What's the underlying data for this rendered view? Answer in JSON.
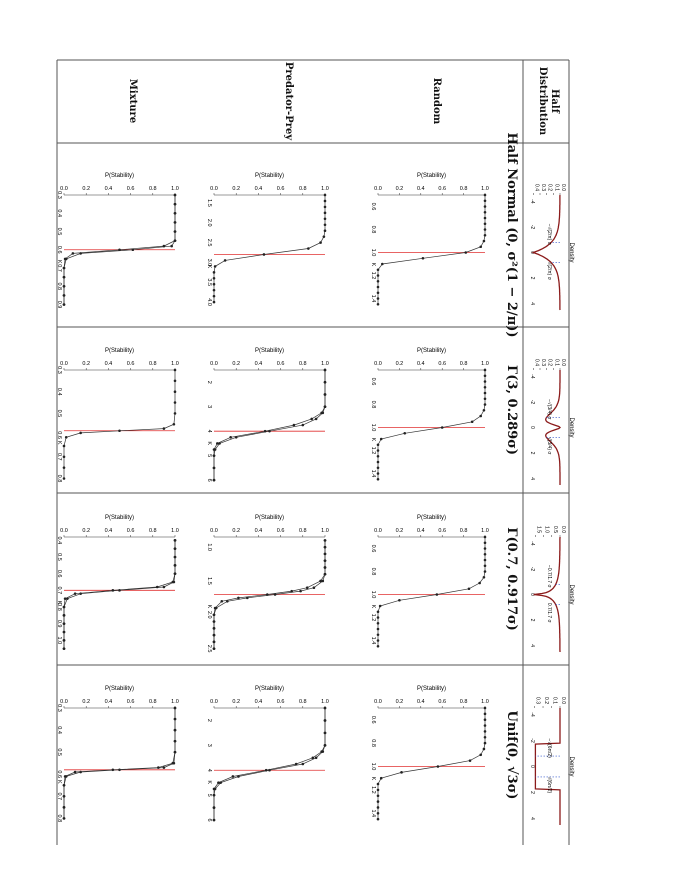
{
  "table": {
    "header_title": "Half\nDistribution",
    "rows": [
      "Random",
      "Predator-Prey",
      "Mixture"
    ],
    "columns": [
      {
        "label": "Half Normal (0, σ²(1 − 2/π))"
      },
      {
        "label": "Γ(3, 0.289σ)"
      },
      {
        "label": "Γ(0.7, 0.917σ)"
      },
      {
        "label": "Unif(0, √3σ)"
      }
    ]
  },
  "density_panels": [
    {
      "ylabel": "Density",
      "yticks": [
        "0.0",
        "0.1",
        "0.2",
        "0.3",
        "0.4"
      ],
      "xticks": [
        "-4",
        "-2",
        "0",
        "2",
        "4"
      ],
      "marker_labels": [
        "−√(2/π) σ",
        "√(2/π) σ"
      ]
    },
    {
      "ylabel": "Density",
      "yticks": [
        "0.0",
        "0.1",
        "0.2",
        "0.3",
        "0.4"
      ],
      "xticks": [
        "-4",
        "-2",
        "0",
        "2",
        "4"
      ],
      "marker_labels": [
        "−√(3/4) σ",
        "√(3/4) σ"
      ]
    },
    {
      "ylabel": "Density",
      "yticks": [
        "0.0",
        "0.5",
        "1.0",
        "1.5"
      ],
      "xticks": [
        "-4",
        "-2",
        "0",
        "2",
        "4"
      ],
      "marker_labels": [
        "−0.7/1.7 σ",
        "0.7/1.7 σ"
      ]
    },
    {
      "ylabel": "Density",
      "yticks": [
        "0.0",
        "0.1",
        "0.2",
        "0.3"
      ],
      "xticks": [
        "-4",
        "-2",
        "0",
        "2",
        "4"
      ],
      "marker_labels": [
        "−√(6π/2)",
        "√(6π/2)"
      ]
    }
  ],
  "stability_axis": {
    "ylabel": "P(Stability)",
    "yticks": [
      "0.0",
      "0.2",
      "0.4",
      "0.6",
      "0.8",
      "1.0"
    ],
    "xlabel": "K"
  },
  "chart_data": [
    {
      "type": "line",
      "row": "Random",
      "column": 1,
      "xlim": [
        0.5,
        1.5
      ],
      "xticks": [
        "0.6",
        "0.8",
        "1.0",
        "1.2",
        "1.4"
      ],
      "threshold": 1.0,
      "series": [
        {
          "x": [
            0.5,
            0.55,
            0.6,
            0.65,
            0.7,
            0.75,
            0.8,
            0.85,
            0.9,
            0.95,
            1.0,
            1.05,
            1.1,
            1.15,
            1.2,
            1.25,
            1.3,
            1.35,
            1.4,
            1.45
          ],
          "y": [
            1,
            1,
            1,
            1,
            1,
            1,
            1,
            1,
            0.99,
            0.96,
            0.82,
            0.42,
            0.04,
            0,
            0,
            0,
            0,
            0,
            0,
            0
          ]
        }
      ]
    },
    {
      "type": "line",
      "row": "Predator-Prey",
      "column": 1,
      "xlim": [
        1.3,
        4.2
      ],
      "xticks": [
        "1.5",
        "2.0",
        "2.5",
        "3.0",
        "3.5",
        "4.0"
      ],
      "threshold": 2.8,
      "series": [
        {
          "x": [
            1.3,
            1.45,
            1.6,
            1.75,
            1.9,
            2.05,
            2.2,
            2.35,
            2.5,
            2.65,
            2.8,
            2.95,
            3.1,
            3.25,
            3.4,
            3.55,
            3.7,
            3.85,
            4.0
          ],
          "y": [
            1,
            1,
            1,
            1,
            1,
            1,
            1,
            0.99,
            0.96,
            0.85,
            0.45,
            0.1,
            0.01,
            0,
            0,
            0,
            0,
            0,
            0
          ]
        }
      ]
    },
    {
      "type": "line",
      "row": "Mixture",
      "column": 1,
      "xlim": [
        0.3,
        0.93
      ],
      "xticks": [
        "0.3",
        "0.4",
        "0.5",
        "0.6",
        "0.7",
        "0.8",
        "0.9"
      ],
      "threshold": 0.6,
      "series": [
        {
          "x": [
            0.3,
            0.35,
            0.4,
            0.45,
            0.5,
            0.55,
            0.58,
            0.6,
            0.62,
            0.65,
            0.7,
            0.75,
            0.8,
            0.85,
            0.9
          ],
          "y": [
            1,
            1,
            1,
            1,
            1,
            1,
            0.97,
            0.62,
            0.15,
            0.02,
            0,
            0,
            0,
            0,
            0
          ]
        },
        {
          "x": [
            0.3,
            0.35,
            0.4,
            0.45,
            0.5,
            0.55,
            0.58,
            0.6,
            0.62,
            0.65,
            0.7,
            0.75,
            0.8,
            0.85,
            0.9
          ],
          "y": [
            1,
            1,
            1,
            1,
            1,
            1,
            0.9,
            0.5,
            0.08,
            0.01,
            0,
            0,
            0,
            0,
            0
          ]
        }
      ]
    },
    {
      "type": "line",
      "row": "Random",
      "column": 2,
      "xlim": [
        0.5,
        1.5
      ],
      "xticks": [
        "0.6",
        "0.8",
        "1.0",
        "1.2",
        "1.4"
      ],
      "threshold": 1.0,
      "series": [
        {
          "x": [
            0.5,
            0.55,
            0.6,
            0.65,
            0.7,
            0.75,
            0.8,
            0.85,
            0.9,
            0.95,
            1.0,
            1.05,
            1.1,
            1.15,
            1.2,
            1.25,
            1.3,
            1.35,
            1.4,
            1.45
          ],
          "y": [
            1,
            1,
            1,
            1,
            1,
            1,
            1,
            0.99,
            0.96,
            0.88,
            0.6,
            0.25,
            0.03,
            0,
            0,
            0,
            0,
            0,
            0,
            0
          ]
        }
      ]
    },
    {
      "type": "line",
      "row": "Predator-Prey",
      "column": 2,
      "xlim": [
        1.5,
        6.2
      ],
      "xticks": [
        "2",
        "3",
        "4",
        "5",
        "6"
      ],
      "threshold": 4.0,
      "series": [
        {
          "x": [
            1.5,
            2,
            2.5,
            3,
            3.25,
            3.5,
            3.75,
            4,
            4.25,
            4.5,
            4.75,
            5,
            5.5,
            6
          ],
          "y": [
            1,
            1,
            1,
            1,
            0.98,
            0.92,
            0.8,
            0.5,
            0.2,
            0.05,
            0.01,
            0,
            0,
            0
          ]
        },
        {
          "x": [
            1.5,
            2,
            2.5,
            3,
            3.25,
            3.5,
            3.75,
            4,
            4.25,
            4.5,
            4.75,
            5,
            5.5,
            6
          ],
          "y": [
            1,
            1,
            1,
            1,
            0.97,
            0.88,
            0.72,
            0.46,
            0.15,
            0.03,
            0,
            0,
            0,
            0
          ]
        }
      ]
    },
    {
      "type": "line",
      "row": "Mixture",
      "column": 2,
      "xlim": [
        0.3,
        0.83
      ],
      "xticks": [
        "0.3",
        "0.4",
        "0.5",
        "0.6",
        "0.7",
        "0.8"
      ],
      "threshold": 0.58,
      "series": [
        {
          "x": [
            0.3,
            0.35,
            0.4,
            0.45,
            0.5,
            0.55,
            0.57,
            0.58,
            0.59,
            0.61,
            0.65,
            0.7,
            0.75,
            0.8
          ],
          "y": [
            1,
            1,
            1,
            1,
            1,
            0.99,
            0.9,
            0.5,
            0.15,
            0.02,
            0,
            0,
            0,
            0
          ]
        }
      ]
    },
    {
      "type": "line",
      "row": "Random",
      "column": 3,
      "xlim": [
        0.5,
        1.5
      ],
      "xticks": [
        "0.6",
        "0.8",
        "1.0",
        "1.2",
        "1.4"
      ],
      "threshold": 1.0,
      "series": [
        {
          "x": [
            0.5,
            0.55,
            0.6,
            0.65,
            0.7,
            0.75,
            0.8,
            0.85,
            0.9,
            0.95,
            1.0,
            1.05,
            1.1,
            1.15,
            1.2,
            1.25,
            1.3,
            1.35,
            1.4,
            1.45
          ],
          "y": [
            1,
            1,
            1,
            1,
            1,
            1,
            1,
            0.99,
            0.95,
            0.85,
            0.55,
            0.2,
            0.02,
            0,
            0,
            0,
            0,
            0,
            0,
            0
          ]
        }
      ]
    },
    {
      "type": "line",
      "row": "Predator-Prey",
      "column": 3,
      "xlim": [
        0.85,
        2.55
      ],
      "xticks": [
        "1.0",
        "1.5",
        "2.0",
        "2.5"
      ],
      "threshold": 1.7,
      "series": [
        {
          "x": [
            0.9,
            1.0,
            1.1,
            1.2,
            1.3,
            1.4,
            1.5,
            1.6,
            1.65,
            1.7,
            1.75,
            1.8,
            1.9,
            2.0,
            2.1,
            2.2,
            2.3,
            2.4,
            2.5
          ],
          "y": [
            1,
            1,
            1,
            1,
            1,
            1,
            0.98,
            0.9,
            0.78,
            0.55,
            0.3,
            0.12,
            0.02,
            0,
            0,
            0,
            0,
            0,
            0
          ]
        },
        {
          "x": [
            0.9,
            1.0,
            1.1,
            1.2,
            1.3,
            1.4,
            1.5,
            1.6,
            1.65,
            1.7,
            1.75,
            1.8,
            1.9,
            2.0,
            2.1,
            2.2,
            2.3,
            2.4,
            2.5
          ],
          "y": [
            1,
            1,
            1,
            1,
            1,
            1,
            0.96,
            0.84,
            0.7,
            0.48,
            0.22,
            0.07,
            0.01,
            0,
            0,
            0,
            0,
            0,
            0
          ]
        }
      ]
    },
    {
      "type": "line",
      "row": "Mixture",
      "column": 3,
      "xlim": [
        0.38,
        1.07
      ],
      "xticks": [
        "0.4",
        "0.5",
        "0.6",
        "0.7",
        "0.8",
        "0.9",
        "1.0"
      ],
      "threshold": 0.7,
      "series": [
        {
          "x": [
            0.4,
            0.45,
            0.5,
            0.55,
            0.6,
            0.65,
            0.68,
            0.7,
            0.72,
            0.75,
            0.8,
            0.85,
            0.9,
            0.95,
            1.0,
            1.05
          ],
          "y": [
            1,
            1,
            1,
            1,
            1,
            0.99,
            0.9,
            0.5,
            0.15,
            0.03,
            0,
            0,
            0,
            0,
            0,
            0
          ]
        },
        {
          "x": [
            0.4,
            0.45,
            0.5,
            0.55,
            0.6,
            0.65,
            0.68,
            0.7,
            0.72,
            0.75,
            0.8,
            0.85,
            0.9,
            0.95,
            1.0,
            1.05
          ],
          "y": [
            1,
            1,
            1,
            1,
            1,
            0.98,
            0.84,
            0.44,
            0.1,
            0.01,
            0,
            0,
            0,
            0,
            0,
            0
          ]
        }
      ]
    },
    {
      "type": "line",
      "row": "Random",
      "column": 4,
      "xlim": [
        0.5,
        1.5
      ],
      "xticks": [
        "0.6",
        "0.8",
        "1.0",
        "1.2",
        "1.4"
      ],
      "threshold": 1.0,
      "series": [
        {
          "x": [
            0.5,
            0.55,
            0.6,
            0.65,
            0.7,
            0.75,
            0.8,
            0.85,
            0.9,
            0.95,
            1.0,
            1.05,
            1.1,
            1.15,
            1.2,
            1.25,
            1.3,
            1.35,
            1.4,
            1.45
          ],
          "y": [
            1,
            1,
            1,
            1,
            1,
            1,
            1,
            0.99,
            0.96,
            0.86,
            0.56,
            0.22,
            0.03,
            0,
            0,
            0,
            0,
            0,
            0,
            0
          ]
        }
      ]
    },
    {
      "type": "line",
      "row": "Predator-Prey",
      "column": 4,
      "xlim": [
        1.5,
        6.2
      ],
      "xticks": [
        "2",
        "3",
        "4",
        "5",
        "6"
      ],
      "threshold": 4.0,
      "series": [
        {
          "x": [
            1.5,
            2,
            2.5,
            3,
            3.25,
            3.5,
            3.75,
            4,
            4.25,
            4.5,
            4.75,
            5,
            5.5,
            6
          ],
          "y": [
            1,
            1,
            1,
            1,
            0.98,
            0.92,
            0.8,
            0.5,
            0.22,
            0.06,
            0.01,
            0,
            0,
            0
          ]
        },
        {
          "x": [
            1.5,
            2,
            2.5,
            3,
            3.25,
            3.5,
            3.75,
            4,
            4.25,
            4.5,
            4.75,
            5,
            5.5,
            6
          ],
          "y": [
            1,
            1,
            1,
            1,
            0.97,
            0.89,
            0.74,
            0.47,
            0.17,
            0.04,
            0,
            0,
            0,
            0
          ]
        }
      ]
    },
    {
      "type": "line",
      "row": "Mixture",
      "column": 4,
      "xlim": [
        0.3,
        0.83
      ],
      "xticks": [
        "0.3",
        "0.4",
        "0.5",
        "0.6",
        "0.7",
        "0.8"
      ],
      "threshold": 0.58,
      "series": [
        {
          "x": [
            0.3,
            0.35,
            0.4,
            0.45,
            0.5,
            0.55,
            0.57,
            0.58,
            0.59,
            0.61,
            0.65,
            0.7,
            0.75,
            0.8
          ],
          "y": [
            1,
            1,
            1,
            1,
            1,
            0.99,
            0.9,
            0.5,
            0.15,
            0.02,
            0,
            0,
            0,
            0
          ]
        },
        {
          "x": [
            0.3,
            0.35,
            0.4,
            0.45,
            0.5,
            0.55,
            0.57,
            0.58,
            0.59,
            0.61,
            0.65,
            0.7,
            0.75,
            0.8
          ],
          "y": [
            1,
            1,
            1,
            1,
            1,
            0.98,
            0.85,
            0.44,
            0.1,
            0.01,
            0,
            0,
            0,
            0
          ]
        }
      ]
    }
  ],
  "colors": {
    "curve": "#8b1a1a",
    "threshold": "#e03030",
    "marker": "#3355cc",
    "line": "#333333"
  }
}
